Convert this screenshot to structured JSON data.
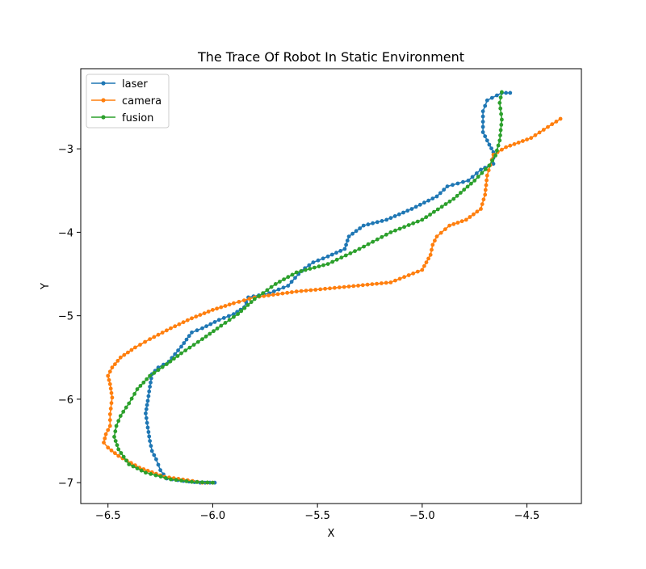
{
  "chart_data": {
    "type": "line",
    "title": "The Trace Of Robot In Static Environment",
    "xlabel": "X",
    "ylabel": "Y",
    "xlim": [
      -6.63,
      -4.24
    ],
    "ylim": [
      -7.25,
      -2.04
    ],
    "xticks": [
      -6.5,
      -6.0,
      -5.5,
      -5.0,
      -4.5
    ],
    "xtick_labels": [
      "−6.5",
      "−6.0",
      "−5.5",
      "−5.0",
      "−4.5"
    ],
    "yticks": [
      -3,
      -4,
      -5,
      -6,
      -7
    ],
    "ytick_labels": [
      "−3",
      "−4",
      "−5",
      "−6",
      "−7"
    ],
    "grid": false,
    "legend_position": "top-left",
    "series": [
      {
        "name": "laser",
        "color": "#1f77b4",
        "x": [
          -5.99,
          -6.06,
          -6.14,
          -6.22,
          -6.25,
          -6.27,
          -6.29,
          -6.3,
          -6.31,
          -6.32,
          -6.31,
          -6.3,
          -6.29,
          -6.26,
          -6.21,
          -6.15,
          -6.1,
          -6.05,
          -5.97,
          -5.9,
          -5.85,
          -5.83,
          -5.73,
          -5.64,
          -5.59,
          -5.56,
          -5.52,
          -5.45,
          -5.37,
          -5.35,
          -5.28,
          -5.17,
          -5.05,
          -4.93,
          -4.88,
          -4.78,
          -4.72,
          -4.66,
          -4.66,
          -4.68,
          -4.71,
          -4.71,
          -4.69,
          -4.62,
          -4.58
        ],
        "y": [
          -7.0,
          -7.0,
          -6.98,
          -6.95,
          -6.85,
          -6.72,
          -6.62,
          -6.5,
          -6.34,
          -6.17,
          -6.02,
          -5.85,
          -5.7,
          -5.62,
          -5.55,
          -5.37,
          -5.2,
          -5.15,
          -5.05,
          -4.98,
          -4.9,
          -4.78,
          -4.73,
          -4.64,
          -4.5,
          -4.43,
          -4.36,
          -4.29,
          -4.2,
          -4.05,
          -3.92,
          -3.85,
          -3.72,
          -3.57,
          -3.45,
          -3.38,
          -3.25,
          -3.18,
          -3.04,
          -2.95,
          -2.8,
          -2.55,
          -2.42,
          -2.33,
          -2.33
        ]
      },
      {
        "name": "camera",
        "color": "#ff7f0e",
        "x": [
          -6.0,
          -6.05,
          -6.12,
          -6.23,
          -6.35,
          -6.45,
          -6.5,
          -6.52,
          -6.51,
          -6.49,
          -6.49,
          -6.48,
          -6.49,
          -6.5,
          -6.48,
          -6.44,
          -6.37,
          -6.3,
          -6.2,
          -6.1,
          -6.0,
          -5.9,
          -5.8,
          -5.6,
          -5.35,
          -5.15,
          -5.0,
          -4.96,
          -4.95,
          -4.93,
          -4.87,
          -4.79,
          -4.72,
          -4.7,
          -4.69,
          -4.66,
          -4.6,
          -4.48,
          -4.34
        ],
        "y": [
          -7.0,
          -7.0,
          -6.97,
          -6.93,
          -6.82,
          -6.68,
          -6.58,
          -6.52,
          -6.42,
          -6.32,
          -6.18,
          -5.98,
          -5.82,
          -5.72,
          -5.62,
          -5.5,
          -5.38,
          -5.28,
          -5.15,
          -5.03,
          -4.93,
          -4.85,
          -4.78,
          -4.71,
          -4.65,
          -4.6,
          -4.45,
          -4.27,
          -4.15,
          -4.05,
          -3.92,
          -3.85,
          -3.72,
          -3.55,
          -3.32,
          -3.07,
          -2.98,
          -2.87,
          -2.64
        ]
      },
      {
        "name": "fusion",
        "color": "#2ca02c",
        "x": [
          -6.0,
          -6.1,
          -6.2,
          -6.32,
          -6.4,
          -6.45,
          -6.47,
          -6.46,
          -6.44,
          -6.4,
          -6.36,
          -6.3,
          -6.22,
          -6.15,
          -6.05,
          -5.96,
          -5.88,
          -5.8,
          -5.7,
          -5.6,
          -5.45,
          -5.3,
          -5.15,
          -5.0,
          -4.85,
          -4.75,
          -4.68,
          -4.65,
          -4.63,
          -4.62,
          -4.63,
          -4.62
        ],
        "y": [
          -7.0,
          -6.99,
          -6.96,
          -6.88,
          -6.78,
          -6.6,
          -6.45,
          -6.32,
          -6.2,
          -6.05,
          -5.88,
          -5.72,
          -5.58,
          -5.45,
          -5.28,
          -5.12,
          -4.98,
          -4.8,
          -4.62,
          -4.48,
          -4.38,
          -4.2,
          -4.0,
          -3.85,
          -3.6,
          -3.38,
          -3.2,
          -3.08,
          -2.9,
          -2.65,
          -2.45,
          -2.32
        ]
      }
    ]
  }
}
